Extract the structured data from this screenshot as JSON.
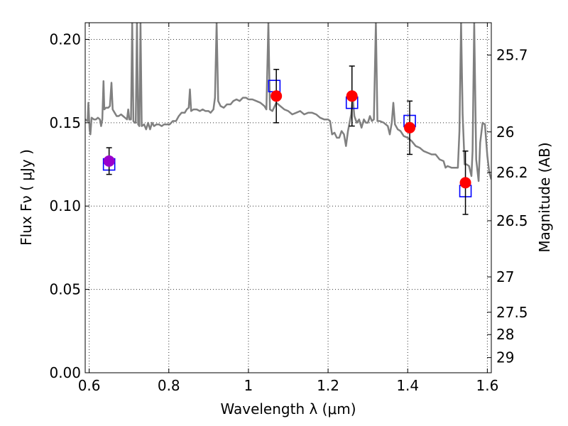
{
  "chart_data": {
    "type": "scatter",
    "xlabel": "Wavelength  λ (μm)",
    "ylabel": "Flux  Fν  ( μJy )",
    "ylabel_right": "Magnitude (AB)",
    "xlim": [
      0.59,
      1.61
    ],
    "ylim": [
      0.0,
      0.21
    ],
    "grid": true,
    "x_ticks": [
      {
        "value": 0.6,
        "label": "0.6"
      },
      {
        "value": 0.8,
        "label": "0.8"
      },
      {
        "value": 1.0,
        "label": "1"
      },
      {
        "value": 1.2,
        "label": "1.2"
      },
      {
        "value": 1.4,
        "label": "1.4"
      },
      {
        "value": 1.6,
        "label": "1.6"
      }
    ],
    "y_ticks": [
      {
        "value": 0.0,
        "label": "0.00"
      },
      {
        "value": 0.05,
        "label": "0.05"
      },
      {
        "value": 0.1,
        "label": "0.10"
      },
      {
        "value": 0.15,
        "label": "0.15"
      },
      {
        "value": 0.2,
        "label": "0.20"
      }
    ],
    "right_axis_ticks": [
      {
        "label": "25.7",
        "flux": 0.1906
      },
      {
        "label": "26",
        "flux": 0.1445
      },
      {
        "label": "26.2",
        "flux": 0.1202
      },
      {
        "label": "26.5",
        "flux": 0.0912
      },
      {
        "label": "27",
        "flux": 0.0575
      },
      {
        "label": "27.5",
        "flux": 0.0363
      },
      {
        "label": "28",
        "flux": 0.0229
      },
      {
        "label": "29",
        "flux": 0.0091
      }
    ],
    "spectrum": {
      "color": "#808080",
      "points": [
        [
          0.59,
          0.152
        ],
        [
          0.596,
          0.151
        ],
        [
          0.598,
          0.162
        ],
        [
          0.601,
          0.146
        ],
        [
          0.603,
          0.143
        ],
        [
          0.606,
          0.153
        ],
        [
          0.612,
          0.152
        ],
        [
          0.617,
          0.152
        ],
        [
          0.622,
          0.153
        ],
        [
          0.627,
          0.152
        ],
        [
          0.63,
          0.148
        ],
        [
          0.633,
          0.152
        ],
        [
          0.636,
          0.175
        ],
        [
          0.638,
          0.158
        ],
        [
          0.642,
          0.159
        ],
        [
          0.648,
          0.159
        ],
        [
          0.652,
          0.16
        ],
        [
          0.656,
          0.174
        ],
        [
          0.659,
          0.158
        ],
        [
          0.664,
          0.156
        ],
        [
          0.669,
          0.154
        ],
        [
          0.674,
          0.154
        ],
        [
          0.68,
          0.155
        ],
        [
          0.685,
          0.154
        ],
        [
          0.69,
          0.153
        ],
        [
          0.695,
          0.152
        ],
        [
          0.698,
          0.158
        ],
        [
          0.701,
          0.152
        ],
        [
          0.705,
          0.152
        ],
        [
          0.708,
          0.21
        ],
        [
          0.711,
          0.151
        ],
        [
          0.714,
          0.15
        ],
        [
          0.717,
          0.15
        ],
        [
          0.72,
          0.21
        ],
        [
          0.723,
          0.149
        ],
        [
          0.726,
          0.148
        ],
        [
          0.729,
          0.21
        ],
        [
          0.732,
          0.148
        ],
        [
          0.738,
          0.149
        ],
        [
          0.743,
          0.146
        ],
        [
          0.748,
          0.15
        ],
        [
          0.753,
          0.146
        ],
        [
          0.758,
          0.15
        ],
        [
          0.763,
          0.148
        ],
        [
          0.769,
          0.149
        ],
        [
          0.775,
          0.149
        ],
        [
          0.782,
          0.148
        ],
        [
          0.788,
          0.149
        ],
        [
          0.795,
          0.149
        ],
        [
          0.802,
          0.149
        ],
        [
          0.81,
          0.151
        ],
        [
          0.818,
          0.151
        ],
        [
          0.825,
          0.154
        ],
        [
          0.832,
          0.156
        ],
        [
          0.84,
          0.156
        ],
        [
          0.845,
          0.158
        ],
        [
          0.85,
          0.159
        ],
        [
          0.853,
          0.17
        ],
        [
          0.856,
          0.157
        ],
        [
          0.862,
          0.158
        ],
        [
          0.87,
          0.158
        ],
        [
          0.878,
          0.157
        ],
        [
          0.885,
          0.158
        ],
        [
          0.892,
          0.157
        ],
        [
          0.9,
          0.157
        ],
        [
          0.905,
          0.156
        ],
        [
          0.912,
          0.158
        ],
        [
          0.916,
          0.165
        ],
        [
          0.92,
          0.21
        ],
        [
          0.924,
          0.163
        ],
        [
          0.93,
          0.16
        ],
        [
          0.938,
          0.159
        ],
        [
          0.946,
          0.161
        ],
        [
          0.955,
          0.161
        ],
        [
          0.962,
          0.163
        ],
        [
          0.97,
          0.164
        ],
        [
          0.978,
          0.163
        ],
        [
          0.986,
          0.165
        ],
        [
          0.994,
          0.165
        ],
        [
          1.0,
          0.164
        ],
        [
          1.01,
          0.164
        ],
        [
          1.02,
          0.163
        ],
        [
          1.03,
          0.162
        ],
        [
          1.04,
          0.16
        ],
        [
          1.045,
          0.158
        ],
        [
          1.05,
          0.21
        ],
        [
          1.054,
          0.158
        ],
        [
          1.06,
          0.157
        ],
        [
          1.07,
          0.162
        ],
        [
          1.08,
          0.16
        ],
        [
          1.09,
          0.158
        ],
        [
          1.1,
          0.157
        ],
        [
          1.11,
          0.155
        ],
        [
          1.12,
          0.156
        ],
        [
          1.13,
          0.157
        ],
        [
          1.14,
          0.155
        ],
        [
          1.15,
          0.156
        ],
        [
          1.16,
          0.156
        ],
        [
          1.17,
          0.155
        ],
        [
          1.18,
          0.153
        ],
        [
          1.19,
          0.152
        ],
        [
          1.2,
          0.152
        ],
        [
          1.205,
          0.151
        ],
        [
          1.21,
          0.143
        ],
        [
          1.216,
          0.144
        ],
        [
          1.222,
          0.141
        ],
        [
          1.228,
          0.141
        ],
        [
          1.234,
          0.145
        ],
        [
          1.24,
          0.143
        ],
        [
          1.245,
          0.136
        ],
        [
          1.25,
          0.145
        ],
        [
          1.258,
          0.155
        ],
        [
          1.262,
          0.165
        ],
        [
          1.266,
          0.154
        ],
        [
          1.272,
          0.15
        ],
        [
          1.278,
          0.152
        ],
        [
          1.284,
          0.147
        ],
        [
          1.29,
          0.152
        ],
        [
          1.295,
          0.15
        ],
        [
          1.3,
          0.15
        ],
        [
          1.305,
          0.154
        ],
        [
          1.31,
          0.151
        ],
        [
          1.315,
          0.152
        ],
        [
          1.32,
          0.21
        ],
        [
          1.324,
          0.151
        ],
        [
          1.33,
          0.151
        ],
        [
          1.34,
          0.15
        ],
        [
          1.35,
          0.148
        ],
        [
          1.355,
          0.143
        ],
        [
          1.36,
          0.15
        ],
        [
          1.364,
          0.162
        ],
        [
          1.368,
          0.149
        ],
        [
          1.375,
          0.146
        ],
        [
          1.382,
          0.145
        ],
        [
          1.39,
          0.142
        ],
        [
          1.4,
          0.141
        ],
        [
          1.41,
          0.139
        ],
        [
          1.42,
          0.136
        ],
        [
          1.43,
          0.135
        ],
        [
          1.44,
          0.133
        ],
        [
          1.45,
          0.132
        ],
        [
          1.46,
          0.131
        ],
        [
          1.47,
          0.131
        ],
        [
          1.48,
          0.128
        ],
        [
          1.49,
          0.127
        ],
        [
          1.495,
          0.123
        ],
        [
          1.5,
          0.124
        ],
        [
          1.51,
          0.123
        ],
        [
          1.52,
          0.123
        ],
        [
          1.526,
          0.123
        ],
        [
          1.53,
          0.145
        ],
        [
          1.534,
          0.21
        ],
        [
          1.538,
          0.155
        ],
        [
          1.543,
          0.125
        ],
        [
          1.548,
          0.125
        ],
        [
          1.554,
          0.124
        ],
        [
          1.56,
          0.118
        ],
        [
          1.563,
          0.133
        ],
        [
          1.567,
          0.21
        ],
        [
          1.572,
          0.128
        ],
        [
          1.578,
          0.115
        ],
        [
          1.582,
          0.138
        ],
        [
          1.588,
          0.15
        ],
        [
          1.594,
          0.149
        ],
        [
          1.6,
          0.13
        ],
        [
          1.605,
          0.12
        ],
        [
          1.61,
          0.116
        ]
      ]
    },
    "photometry": {
      "marker_color": "#ff0000",
      "points": [
        {
          "x": 0.65,
          "y": 0.127,
          "err_low": 0.119,
          "err_high": 0.135,
          "color": "#9900cc"
        },
        {
          "x": 1.07,
          "y": 0.166,
          "err_low": 0.15,
          "err_high": 0.182,
          "color": "#ff0000"
        },
        {
          "x": 1.26,
          "y": 0.166,
          "err_low": 0.148,
          "err_high": 0.184,
          "color": "#ff0000"
        },
        {
          "x": 1.405,
          "y": 0.147,
          "err_low": 0.131,
          "err_high": 0.163,
          "color": "#ff0000"
        },
        {
          "x": 1.545,
          "y": 0.114,
          "err_low": 0.095,
          "err_high": 0.133,
          "color": "#ff0000"
        }
      ]
    },
    "model_bands": {
      "color": "#0000ff",
      "points": [
        {
          "x": 0.65,
          "y": 0.125
        },
        {
          "x": 1.065,
          "y": 0.172
        },
        {
          "x": 1.26,
          "y": 0.162
        },
        {
          "x": 1.405,
          "y": 0.151
        },
        {
          "x": 1.545,
          "y": 0.109
        }
      ]
    }
  }
}
